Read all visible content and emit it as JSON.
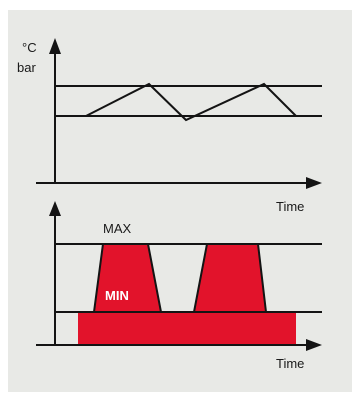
{
  "colors": {
    "panel_background": "#e8e9e6",
    "line": "#141414",
    "fill_red": "#e2132b",
    "label_white": "#ffffff"
  },
  "top_chart": {
    "y_unit_temperature": "°C",
    "y_unit_pressure": "bar",
    "x_label": "Time"
  },
  "bottom_chart": {
    "max_label": "MAX",
    "min_label": "MIN",
    "x_label": "Time"
  }
}
